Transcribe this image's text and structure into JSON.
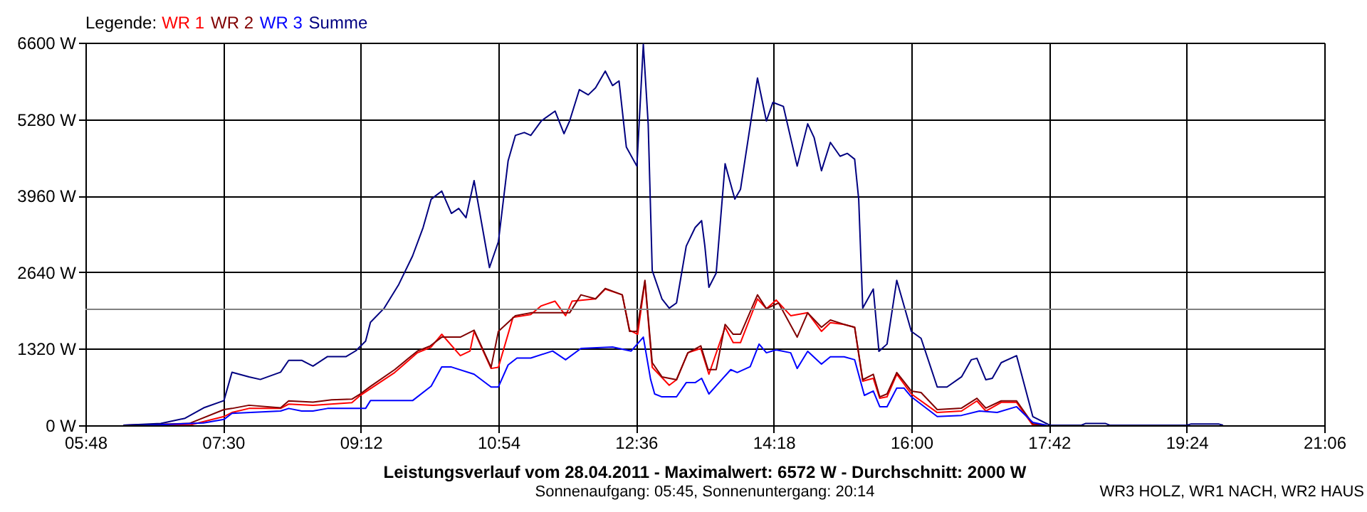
{
  "chart_data": {
    "type": "line",
    "title": "Leistungsverlauf vom 28.04.2011 - Maximalwert: 6572 W - Durchschnitt: 2000 W",
    "subtitle": "Sonnenaufgang: 05:45, Sonnenuntergang: 20:14",
    "annotations": [
      "WR3 HOLZ, WR1 NACH, WR2 HAUS"
    ],
    "legend_title": "Legende:",
    "legend": "top left",
    "grid": true,
    "line_style": "solid",
    "marker": "none",
    "xlim": [
      5.8,
      21.1
    ],
    "xticks": [
      {
        "value": 5.8,
        "label": "05:48"
      },
      {
        "value": 7.5,
        "label": "07:30"
      },
      {
        "value": 9.2,
        "label": "09:12"
      },
      {
        "value": 10.9,
        "label": "10:54"
      },
      {
        "value": 12.6,
        "label": "12:36"
      },
      {
        "value": 14.3,
        "label": "14:18"
      },
      {
        "value": 16.0,
        "label": "16:00"
      },
      {
        "value": 17.7,
        "label": "17:42"
      },
      {
        "value": 19.4,
        "label": "19:24"
      },
      {
        "value": 21.1,
        "label": "21:06"
      }
    ],
    "ylim": [
      0,
      6600
    ],
    "yticks": [
      {
        "value": 0,
        "label": "0 W"
      },
      {
        "value": 1320,
        "label": "1320 W"
      },
      {
        "value": 2640,
        "label": "2640 W"
      },
      {
        "value": 3960,
        "label": "3960 W"
      },
      {
        "value": 5280,
        "label": "5280 W"
      },
      {
        "value": 6600,
        "label": "6600 W"
      }
    ],
    "ref_lines": [
      {
        "axis": "y",
        "value": 2000,
        "color": "#808080"
      }
    ],
    "series": [
      {
        "name": "WR 1",
        "color": "#ff0000",
        "x": [
          6.27,
          7.08,
          7.51,
          7.61,
          7.82,
          8.21,
          8.31,
          8.61,
          9.09,
          9.19,
          9.62,
          9.9,
          10.07,
          10.2,
          10.43,
          10.55,
          10.6,
          10.81,
          10.9,
          11.08,
          11.3,
          11.43,
          11.6,
          11.73,
          11.81,
          12.1,
          12.22,
          12.43,
          12.52,
          12.62,
          12.71,
          12.8,
          13.01,
          13.1,
          13.24,
          13.4,
          13.5,
          13.7,
          13.8,
          13.89,
          14.1,
          14.21,
          14.33,
          14.51,
          14.72,
          14.89,
          15.0,
          15.17,
          15.3,
          15.4,
          15.53,
          15.61,
          15.7,
          15.82,
          16.0,
          16.32,
          16.62,
          16.81,
          16.92,
          17.11,
          17.3,
          17.5,
          17.64
        ],
        "values": [
          0,
          0,
          150,
          220,
          290,
          290,
          365,
          345,
          390,
          510,
          910,
          1250,
          1350,
          1570,
          1200,
          1280,
          1620,
          980,
          1000,
          1860,
          1910,
          2060,
          2140,
          1890,
          2140,
          2180,
          2350,
          2250,
          1640,
          1570,
          2480,
          1000,
          690,
          785,
          1250,
          1325,
          880,
          1690,
          1425,
          1425,
          2180,
          2010,
          2160,
          1890,
          1940,
          1620,
          1770,
          1740,
          1690,
          760,
          810,
          465,
          490,
          880,
          540,
          220,
          245,
          420,
          245,
          395,
          395,
          0,
          0
        ]
      },
      {
        "name": "WR 2",
        "color": "#800000",
        "x": [
          6.27,
          7.08,
          7.51,
          7.61,
          7.82,
          8.21,
          8.31,
          8.61,
          8.84,
          9.09,
          9.19,
          9.32,
          9.62,
          9.79,
          9.9,
          10.06,
          10.2,
          10.43,
          10.6,
          10.81,
          10.9,
          11.11,
          11.3,
          11.55,
          11.78,
          11.92,
          12.1,
          12.22,
          12.43,
          12.52,
          12.61,
          12.71,
          12.8,
          12.92,
          13.1,
          13.24,
          13.4,
          13.49,
          13.59,
          13.7,
          13.8,
          13.89,
          14.1,
          14.21,
          14.36,
          14.59,
          14.72,
          14.89,
          15.0,
          15.17,
          15.3,
          15.4,
          15.53,
          15.61,
          15.7,
          15.82,
          16.0,
          16.12,
          16.32,
          16.62,
          16.81,
          16.92,
          17.11,
          17.3,
          17.5,
          17.64
        ],
        "values": [
          0,
          30,
          270,
          290,
          345,
          300,
          420,
          400,
          440,
          450,
          535,
          670,
          960,
          1155,
          1280,
          1370,
          1520,
          1520,
          1640,
          1000,
          1620,
          1890,
          1940,
          1940,
          1940,
          2250,
          2180,
          2360,
          2250,
          1620,
          1620,
          2500,
          1080,
          835,
          785,
          1250,
          1370,
          960,
          960,
          1740,
          1570,
          1570,
          2250,
          2010,
          2110,
          1520,
          1940,
          1690,
          1815,
          1740,
          1690,
          785,
          880,
          490,
          540,
          910,
          590,
          565,
          270,
          295,
          465,
          295,
          420,
          420,
          25,
          0
        ]
      },
      {
        "name": "WR 3",
        "color": "#0000ff",
        "x": [
          6.27,
          6.73,
          7.26,
          7.51,
          7.61,
          8.21,
          8.31,
          8.47,
          8.61,
          8.79,
          9.26,
          9.32,
          9.67,
          9.84,
          10.07,
          10.2,
          10.32,
          10.6,
          10.81,
          10.9,
          11.02,
          11.13,
          11.3,
          11.57,
          11.73,
          11.92,
          12.31,
          12.54,
          12.69,
          12.78,
          12.83,
          12.92,
          13.1,
          13.22,
          13.33,
          13.41,
          13.5,
          13.66,
          13.77,
          13.85,
          14.01,
          14.12,
          14.21,
          14.33,
          14.51,
          14.59,
          14.72,
          14.89,
          15.0,
          15.17,
          15.3,
          15.42,
          15.53,
          15.61,
          15.7,
          15.82,
          15.91,
          16.0,
          16.32,
          16.62,
          16.84,
          17.06,
          17.3,
          17.5,
          17.67
        ],
        "values": [
          0,
          10,
          40,
          100,
          205,
          245,
          290,
          245,
          245,
          290,
          290,
          425,
          425,
          425,
          675,
          1005,
          1005,
          880,
          660,
          660,
          1040,
          1160,
          1160,
          1280,
          1130,
          1325,
          1350,
          1280,
          1520,
          790,
          540,
          490,
          490,
          735,
          735,
          810,
          540,
          790,
          960,
          910,
          1010,
          1400,
          1250,
          1300,
          1250,
          980,
          1275,
          1055,
          1180,
          1180,
          1130,
          515,
          590,
          320,
          320,
          640,
          640,
          490,
          150,
          170,
          245,
          220,
          320,
          50,
          0
        ]
      },
      {
        "name": "Summe",
        "color": "#000080",
        "x": [
          6.27,
          6.73,
          7.03,
          7.26,
          7.51,
          7.61,
          7.82,
          7.96,
          8.21,
          8.31,
          8.47,
          8.61,
          8.79,
          9.02,
          9.14,
          9.26,
          9.32,
          9.49,
          9.67,
          9.84,
          9.97,
          10.07,
          10.2,
          10.32,
          10.41,
          10.5,
          10.6,
          10.79,
          10.9,
          11.02,
          11.11,
          11.22,
          11.3,
          11.43,
          11.6,
          11.71,
          11.78,
          11.9,
          12.01,
          12.1,
          12.22,
          12.31,
          12.39,
          12.48,
          12.61,
          12.62,
          12.69,
          12.75,
          12.8,
          12.92,
          13.01,
          13.1,
          13.22,
          13.33,
          13.41,
          13.45,
          13.5,
          13.59,
          13.7,
          13.82,
          13.89,
          14.1,
          14.21,
          14.29,
          14.42,
          14.59,
          14.72,
          14.8,
          14.89,
          15.0,
          15.12,
          15.21,
          15.3,
          15.35,
          15.4,
          15.53,
          15.6,
          15.7,
          15.82,
          16.0,
          16.12,
          16.32,
          16.44,
          16.62,
          16.74,
          16.81,
          16.92,
          17.0,
          17.11,
          17.3,
          17.5,
          17.71,
          18.1,
          18.15,
          18.4,
          18.45,
          19.4,
          19.45,
          19.8,
          19.85
        ],
        "values": [
          0,
          30,
          120,
          300,
          425,
          915,
          835,
          790,
          915,
          1120,
          1120,
          1020,
          1185,
          1185,
          1285,
          1450,
          1775,
          2020,
          2430,
          2920,
          3410,
          3900,
          4040,
          3655,
          3740,
          3580,
          4220,
          2720,
          3165,
          4560,
          5000,
          5050,
          5000,
          5250,
          5420,
          5030,
          5250,
          5790,
          5700,
          5820,
          6110,
          5860,
          5940,
          4800,
          4470,
          4720,
          6572,
          5200,
          2670,
          2180,
          2020,
          2110,
          3090,
          3410,
          3530,
          3090,
          2380,
          2625,
          4510,
          3900,
          4070,
          5990,
          5250,
          5570,
          5500,
          4470,
          5200,
          4960,
          4390,
          4880,
          4640,
          4690,
          4590,
          3900,
          2020,
          2350,
          1275,
          1400,
          2500,
          1620,
          1500,
          660,
          660,
          835,
          1130,
          1155,
          785,
          810,
          1080,
          1200,
          150,
          0,
          0,
          30,
          30,
          0,
          0,
          20,
          20,
          0
        ]
      }
    ]
  }
}
